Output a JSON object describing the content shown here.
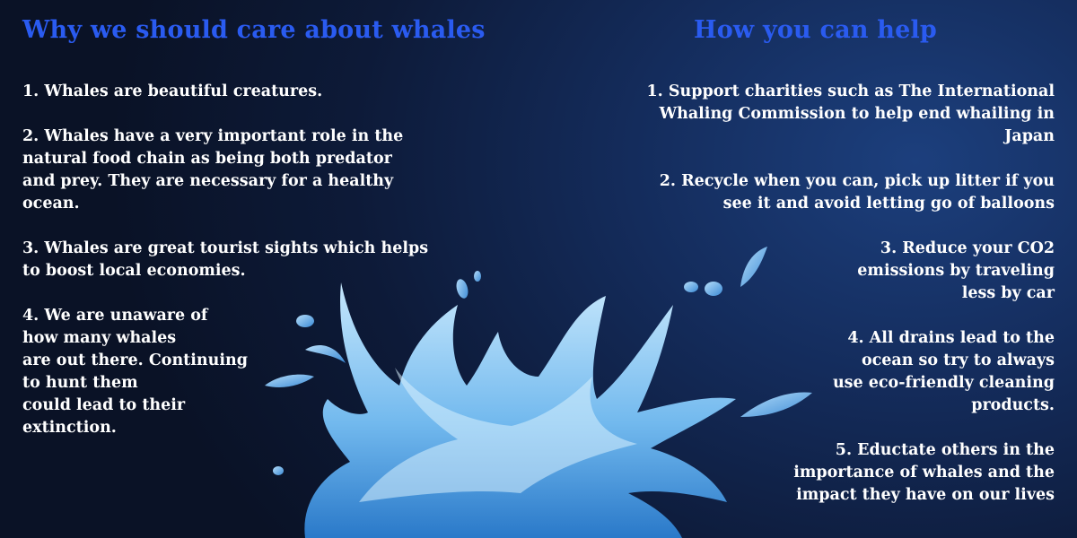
{
  "left": {
    "heading": "Why we should care about whales",
    "points": [
      "1. Whales are beautiful creatures.",
      "2. Whales have a very important role in the\nnatural food chain as being both predator\nand prey. They are necessary for a healthy\nocean.",
      "3. Whales are great tourist sights which helps\nto boost local economies.",
      "4. We are unaware of\nhow many whales\nare out there. Continuing\nto hunt them\ncould lead to their\nextinction."
    ]
  },
  "right": {
    "heading": "How you can help",
    "points": [
      "1. Support charities such as The International\nWhaling Commission to help end whailing in\nJapan",
      "2. Recycle when you can, pick up litter if you\nsee it and avoid letting go of balloons",
      "3. Reduce your CO2\nemissions by traveling\nless by car",
      "4. All drains lead to the\nocean so try to always\nuse eco-friendly cleaning\nproducts.",
      "5. Eductate others in the\nimportance of whales and the\nimpact they have on our lives"
    ]
  },
  "colors": {
    "heading": "#2a5bf0",
    "body_text": "#ffffff",
    "splash_light": "#bfe3fb",
    "splash_dark": "#2b7fcf"
  },
  "icons": {
    "decoration": "water-splash-icon"
  }
}
